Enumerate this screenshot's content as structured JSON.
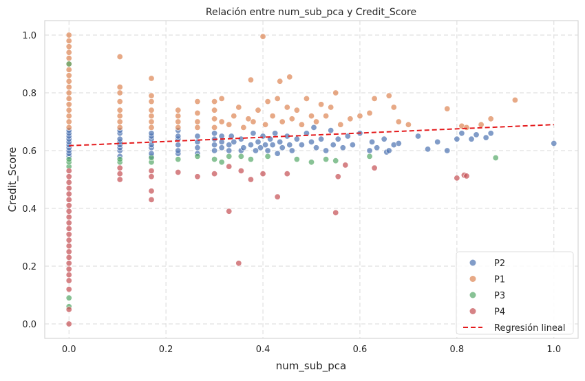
{
  "chart_data": {
    "type": "scatter",
    "title": "Relación entre num_sub_pca y Credit_Score",
    "xlabel": "num_sub_pca",
    "ylabel": "Credit_Score",
    "xlim": [
      -0.05,
      1.05
    ],
    "ylim": [
      -0.05,
      1.05
    ],
    "x_ticks": [
      "0.0",
      "0.2",
      "0.4",
      "0.6",
      "0.8",
      "1.0"
    ],
    "y_ticks": [
      "0.0",
      "0.2",
      "0.4",
      "0.6",
      "0.8",
      "1.0"
    ],
    "grid": true,
    "legend_position": "bottom-right",
    "series": [
      {
        "name": "P2",
        "color": "#4c72b0",
        "points": [
          [
            0,
            0.58
          ],
          [
            0,
            0.59
          ],
          [
            0,
            0.6
          ],
          [
            0,
            0.61
          ],
          [
            0,
            0.62
          ],
          [
            0,
            0.63
          ],
          [
            0,
            0.64
          ],
          [
            0,
            0.65
          ],
          [
            0,
            0.66
          ],
          [
            0,
            0.67
          ],
          [
            0.105,
            0.58
          ],
          [
            0.105,
            0.6
          ],
          [
            0.105,
            0.61
          ],
          [
            0.105,
            0.62
          ],
          [
            0.105,
            0.63
          ],
          [
            0.105,
            0.64
          ],
          [
            0.105,
            0.66
          ],
          [
            0.105,
            0.67
          ],
          [
            0.17,
            0.58
          ],
          [
            0.17,
            0.59
          ],
          [
            0.17,
            0.61
          ],
          [
            0.17,
            0.62
          ],
          [
            0.17,
            0.64
          ],
          [
            0.17,
            0.65
          ],
          [
            0.17,
            0.66
          ],
          [
            0.225,
            0.59
          ],
          [
            0.225,
            0.6
          ],
          [
            0.225,
            0.62
          ],
          [
            0.225,
            0.64
          ],
          [
            0.225,
            0.65
          ],
          [
            0.225,
            0.67
          ],
          [
            0.265,
            0.59
          ],
          [
            0.265,
            0.61
          ],
          [
            0.265,
            0.63
          ],
          [
            0.265,
            0.65
          ],
          [
            0.3,
            0.6
          ],
          [
            0.3,
            0.62
          ],
          [
            0.3,
            0.64
          ],
          [
            0.3,
            0.66
          ],
          [
            0.315,
            0.61
          ],
          [
            0.315,
            0.63
          ],
          [
            0.315,
            0.65
          ],
          [
            0.33,
            0.6
          ],
          [
            0.33,
            0.62
          ],
          [
            0.335,
            0.65
          ],
          [
            0.34,
            0.63
          ],
          [
            0.355,
            0.6
          ],
          [
            0.355,
            0.64
          ],
          [
            0.36,
            0.61
          ],
          [
            0.375,
            0.62
          ],
          [
            0.38,
            0.66
          ],
          [
            0.385,
            0.6
          ],
          [
            0.39,
            0.63
          ],
          [
            0.395,
            0.61
          ],
          [
            0.4,
            0.65
          ],
          [
            0.405,
            0.62
          ],
          [
            0.41,
            0.6
          ],
          [
            0.415,
            0.64
          ],
          [
            0.42,
            0.62
          ],
          [
            0.425,
            0.66
          ],
          [
            0.43,
            0.59
          ],
          [
            0.435,
            0.63
          ],
          [
            0.44,
            0.61
          ],
          [
            0.45,
            0.65
          ],
          [
            0.455,
            0.62
          ],
          [
            0.46,
            0.6
          ],
          [
            0.47,
            0.64
          ],
          [
            0.48,
            0.62
          ],
          [
            0.49,
            0.66
          ],
          [
            0.5,
            0.63
          ],
          [
            0.505,
            0.68
          ],
          [
            0.51,
            0.61
          ],
          [
            0.52,
            0.64
          ],
          [
            0.53,
            0.6
          ],
          [
            0.54,
            0.67
          ],
          [
            0.545,
            0.62
          ],
          [
            0.555,
            0.64
          ],
          [
            0.565,
            0.61
          ],
          [
            0.575,
            0.65
          ],
          [
            0.585,
            0.62
          ],
          [
            0.6,
            0.66
          ],
          [
            0.62,
            0.6
          ],
          [
            0.625,
            0.63
          ],
          [
            0.635,
            0.61
          ],
          [
            0.65,
            0.64
          ],
          [
            0.655,
            0.595
          ],
          [
            0.66,
            0.6
          ],
          [
            0.67,
            0.62
          ],
          [
            0.68,
            0.625
          ],
          [
            0.72,
            0.65
          ],
          [
            0.74,
            0.605
          ],
          [
            0.76,
            0.63
          ],
          [
            0.78,
            0.6
          ],
          [
            0.8,
            0.64
          ],
          [
            0.81,
            0.66
          ],
          [
            0.83,
            0.64
          ],
          [
            0.84,
            0.655
          ],
          [
            0.86,
            0.645
          ],
          [
            0.87,
            0.66
          ],
          [
            1.0,
            0.625
          ]
        ]
      },
      {
        "name": "P1",
        "color": "#dd8452",
        "points": [
          [
            0,
            0.68
          ],
          [
            0,
            0.7
          ],
          [
            0,
            0.72
          ],
          [
            0,
            0.74
          ],
          [
            0,
            0.76
          ],
          [
            0,
            0.78
          ],
          [
            0,
            0.8
          ],
          [
            0,
            0.82
          ],
          [
            0,
            0.84
          ],
          [
            0,
            0.86
          ],
          [
            0,
            0.88
          ],
          [
            0,
            0.9
          ],
          [
            0,
            0.92
          ],
          [
            0,
            0.94
          ],
          [
            0,
            0.96
          ],
          [
            0,
            0.98
          ],
          [
            0,
            1.0
          ],
          [
            0.105,
            0.68
          ],
          [
            0.105,
            0.7
          ],
          [
            0.105,
            0.72
          ],
          [
            0.105,
            0.74
          ],
          [
            0.105,
            0.77
          ],
          [
            0.105,
            0.8
          ],
          [
            0.105,
            0.82
          ],
          [
            0.105,
            0.925
          ],
          [
            0.17,
            0.68
          ],
          [
            0.17,
            0.7
          ],
          [
            0.17,
            0.72
          ],
          [
            0.17,
            0.74
          ],
          [
            0.17,
            0.77
          ],
          [
            0.17,
            0.79
          ],
          [
            0.17,
            0.85
          ],
          [
            0.225,
            0.68
          ],
          [
            0.225,
            0.7
          ],
          [
            0.225,
            0.72
          ],
          [
            0.225,
            0.74
          ],
          [
            0.265,
            0.68
          ],
          [
            0.265,
            0.7
          ],
          [
            0.265,
            0.73
          ],
          [
            0.265,
            0.77
          ],
          [
            0.3,
            0.68
          ],
          [
            0.3,
            0.71
          ],
          [
            0.3,
            0.74
          ],
          [
            0.3,
            0.77
          ],
          [
            0.315,
            0.7
          ],
          [
            0.315,
            0.78
          ],
          [
            0.33,
            0.69
          ],
          [
            0.34,
            0.72
          ],
          [
            0.35,
            0.75
          ],
          [
            0.36,
            0.68
          ],
          [
            0.37,
            0.71
          ],
          [
            0.375,
            0.845
          ],
          [
            0.38,
            0.7
          ],
          [
            0.39,
            0.74
          ],
          [
            0.4,
            0.995
          ],
          [
            0.405,
            0.69
          ],
          [
            0.41,
            0.77
          ],
          [
            0.42,
            0.72
          ],
          [
            0.43,
            0.78
          ],
          [
            0.435,
            0.84
          ],
          [
            0.44,
            0.7
          ],
          [
            0.45,
            0.75
          ],
          [
            0.455,
            0.855
          ],
          [
            0.46,
            0.71
          ],
          [
            0.47,
            0.74
          ],
          [
            0.48,
            0.69
          ],
          [
            0.49,
            0.78
          ],
          [
            0.5,
            0.72
          ],
          [
            0.51,
            0.7
          ],
          [
            0.52,
            0.76
          ],
          [
            0.53,
            0.72
          ],
          [
            0.54,
            0.75
          ],
          [
            0.55,
            0.8
          ],
          [
            0.56,
            0.69
          ],
          [
            0.58,
            0.71
          ],
          [
            0.6,
            0.72
          ],
          [
            0.62,
            0.73
          ],
          [
            0.63,
            0.78
          ],
          [
            0.66,
            0.79
          ],
          [
            0.67,
            0.75
          ],
          [
            0.68,
            0.7
          ],
          [
            0.7,
            0.69
          ],
          [
            0.78,
            0.745
          ],
          [
            0.81,
            0.685
          ],
          [
            0.82,
            0.68
          ],
          [
            0.85,
            0.69
          ],
          [
            0.87,
            0.71
          ],
          [
            0.92,
            0.775
          ]
        ]
      },
      {
        "name": "P3",
        "color": "#55a868",
        "points": [
          [
            0,
            0.06
          ],
          [
            0,
            0.09
          ],
          [
            0,
            0.545
          ],
          [
            0,
            0.56
          ],
          [
            0,
            0.57
          ],
          [
            0,
            0.9
          ],
          [
            0.105,
            0.56
          ],
          [
            0.105,
            0.57
          ],
          [
            0.17,
            0.56
          ],
          [
            0.17,
            0.575
          ],
          [
            0.225,
            0.57
          ],
          [
            0.265,
            0.58
          ],
          [
            0.3,
            0.57
          ],
          [
            0.315,
            0.56
          ],
          [
            0.33,
            0.58
          ],
          [
            0.355,
            0.58
          ],
          [
            0.375,
            0.57
          ],
          [
            0.41,
            0.58
          ],
          [
            0.47,
            0.57
          ],
          [
            0.5,
            0.56
          ],
          [
            0.53,
            0.57
          ],
          [
            0.55,
            0.565
          ],
          [
            0.62,
            0.58
          ],
          [
            0.88,
            0.575
          ]
        ]
      },
      {
        "name": "P4",
        "color": "#c44e52",
        "points": [
          [
            0,
            0.0
          ],
          [
            0,
            0.05
          ],
          [
            0,
            0.12
          ],
          [
            0,
            0.15
          ],
          [
            0,
            0.17
          ],
          [
            0,
            0.19
          ],
          [
            0,
            0.21
          ],
          [
            0,
            0.23
          ],
          [
            0,
            0.25
          ],
          [
            0,
            0.27
          ],
          [
            0,
            0.29
          ],
          [
            0,
            0.31
          ],
          [
            0,
            0.33
          ],
          [
            0,
            0.35
          ],
          [
            0,
            0.37
          ],
          [
            0,
            0.39
          ],
          [
            0,
            0.41
          ],
          [
            0,
            0.43
          ],
          [
            0,
            0.45
          ],
          [
            0,
            0.47
          ],
          [
            0,
            0.49
          ],
          [
            0,
            0.51
          ],
          [
            0,
            0.53
          ],
          [
            0.105,
            0.5
          ],
          [
            0.105,
            0.52
          ],
          [
            0.105,
            0.54
          ],
          [
            0.17,
            0.43
          ],
          [
            0.17,
            0.46
          ],
          [
            0.17,
            0.51
          ],
          [
            0.17,
            0.53
          ],
          [
            0.225,
            0.525
          ],
          [
            0.265,
            0.51
          ],
          [
            0.3,
            0.52
          ],
          [
            0.33,
            0.39
          ],
          [
            0.33,
            0.545
          ],
          [
            0.35,
            0.21
          ],
          [
            0.355,
            0.53
          ],
          [
            0.375,
            0.5
          ],
          [
            0.4,
            0.52
          ],
          [
            0.43,
            0.44
          ],
          [
            0.45,
            0.52
          ],
          [
            0.55,
            0.385
          ],
          [
            0.555,
            0.51
          ],
          [
            0.57,
            0.55
          ],
          [
            0.63,
            0.54
          ],
          [
            0.8,
            0.505
          ],
          [
            0.815,
            0.515
          ],
          [
            0.82,
            0.512
          ]
        ]
      }
    ],
    "regression": {
      "name": "Regresión lineal",
      "color": "#e41a1c",
      "x": [
        0,
        1.0
      ],
      "y": [
        0.617,
        0.69
      ]
    }
  }
}
